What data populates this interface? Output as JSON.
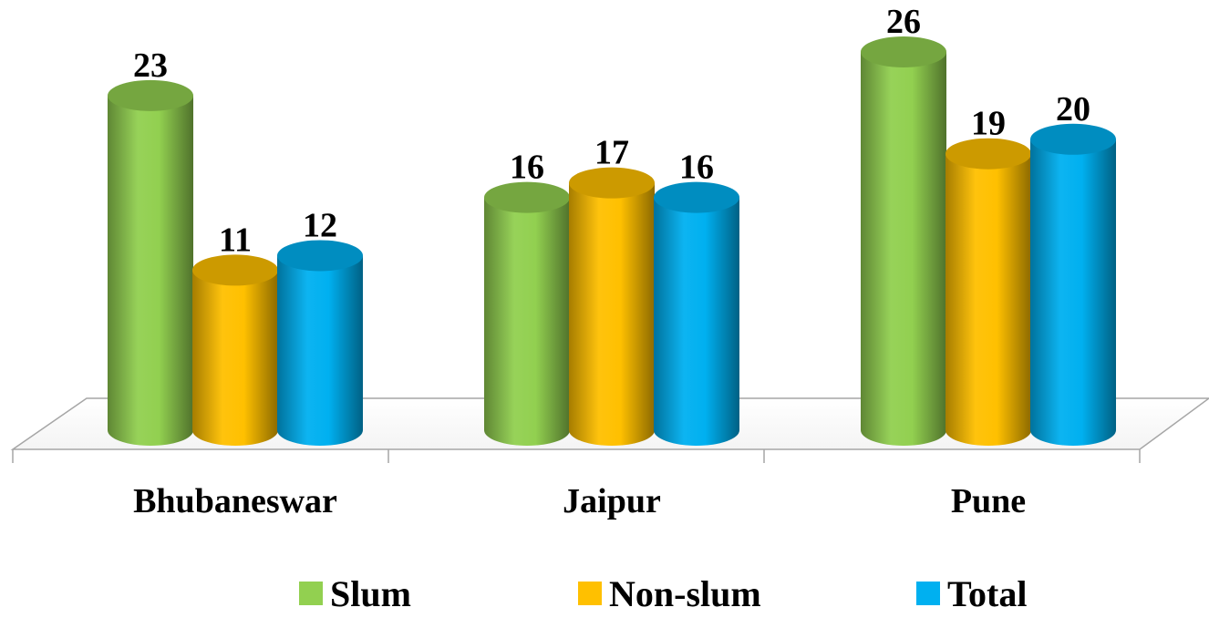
{
  "chart_data": {
    "type": "bar",
    "categories": [
      "Bhubaneswar",
      "Jaipur",
      "Pune"
    ],
    "series": [
      {
        "name": "Slum",
        "values": [
          23,
          16,
          26
        ],
        "color": "#92D050"
      },
      {
        "name": "Non-slum",
        "values": [
          11,
          17,
          19
        ],
        "color": "#FFC000"
      },
      {
        "name": "Total",
        "values": [
          12,
          16,
          20
        ],
        "color": "#00B0F0"
      }
    ],
    "title": "",
    "xlabel": "",
    "ylabel": "",
    "ylim": [
      0,
      26
    ],
    "grid": false,
    "legend": "bottom",
    "bar_shape": "3d-cylinder"
  }
}
